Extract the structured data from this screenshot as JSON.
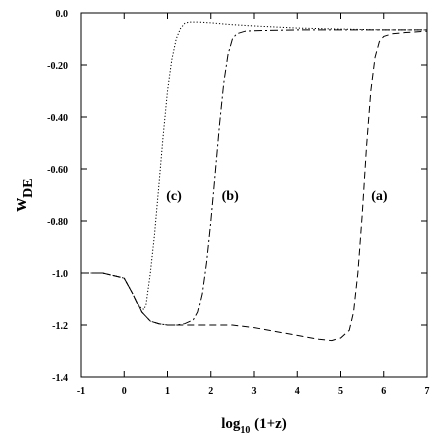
{
  "chart_data": {
    "type": "line",
    "xlabel_main": "log",
    "xlabel_sub": "10",
    "xlabel_rest": " (1+z)",
    "ylabel_main": "w",
    "ylabel_sub": "DE",
    "xlim": [
      -1,
      7
    ],
    "ylim": [
      -1.4,
      0.0
    ],
    "x_ticks": [
      -1,
      0,
      1,
      2,
      3,
      4,
      5,
      6,
      7
    ],
    "x_tick_labels": [
      "-1",
      "0",
      "1",
      "2",
      "3",
      "4",
      "5",
      "6",
      "7"
    ],
    "y_ticks": [
      0.0,
      -0.2,
      -0.4,
      -0.6,
      -0.8,
      -1.0,
      -1.2,
      -1.4
    ],
    "y_tick_labels": [
      "0.0",
      "-0.20",
      "-0.40",
      "-0.60",
      "-0.80",
      "-1.0",
      "-1.2",
      "-1.4"
    ],
    "grid": false,
    "series": [
      {
        "label": "(a)",
        "style": "dashed",
        "label_pos": {
          "x": 5.9,
          "y": -0.72
        },
        "x": [
          -1,
          -0.5,
          0,
          0.2,
          0.4,
          0.6,
          0.8,
          1.0,
          1.5,
          2.0,
          2.5,
          3.0,
          3.5,
          4.0,
          4.5,
          4.8,
          5.0,
          5.2,
          5.3,
          5.4,
          5.5,
          5.6,
          5.7,
          5.8,
          5.9,
          6.0,
          6.2,
          6.5,
          7.0
        ],
        "y": [
          -1.0,
          -1.0,
          -1.02,
          -1.08,
          -1.15,
          -1.185,
          -1.195,
          -1.2,
          -1.2,
          -1.2,
          -1.2,
          -1.21,
          -1.225,
          -1.24,
          -1.255,
          -1.26,
          -1.25,
          -1.22,
          -1.15,
          -1.0,
          -0.78,
          -0.52,
          -0.3,
          -0.17,
          -0.11,
          -0.09,
          -0.08,
          -0.075,
          -0.07
        ]
      },
      {
        "label": "(b)",
        "style": "dash-dot",
        "label_pos": {
          "x": 2.45,
          "y": -0.72
        },
        "x": [
          -1,
          -0.5,
          0,
          0.2,
          0.4,
          0.6,
          0.8,
          1.0,
          1.2,
          1.4,
          1.6,
          1.7,
          1.8,
          1.9,
          2.0,
          2.1,
          2.2,
          2.3,
          2.4,
          2.5,
          2.6,
          2.8,
          3.0,
          4.0,
          5.0,
          6.0,
          7.0
        ],
        "y": [
          -1.0,
          -1.0,
          -1.02,
          -1.08,
          -1.15,
          -1.185,
          -1.195,
          -1.2,
          -1.2,
          -1.195,
          -1.18,
          -1.15,
          -1.08,
          -0.96,
          -0.8,
          -0.62,
          -0.43,
          -0.27,
          -0.16,
          -0.1,
          -0.08,
          -0.07,
          -0.068,
          -0.065,
          -0.065,
          -0.065,
          -0.065
        ]
      },
      {
        "label": "(c)",
        "style": "dotted",
        "label_pos": {
          "x": 1.15,
          "y": -0.72
        },
        "x": [
          -1,
          -0.5,
          0,
          0.2,
          0.35,
          0.45,
          0.5,
          0.6,
          0.7,
          0.8,
          0.9,
          1.0,
          1.1,
          1.2,
          1.3,
          1.4,
          1.5,
          1.7,
          2.0,
          2.5,
          3.0,
          4.0,
          5.0,
          6.0,
          7.0
        ],
        "y": [
          -1.0,
          -1.0,
          -1.02,
          -1.08,
          -1.13,
          -1.14,
          -1.12,
          -1.0,
          -0.85,
          -0.66,
          -0.47,
          -0.3,
          -0.18,
          -0.1,
          -0.06,
          -0.04,
          -0.035,
          -0.035,
          -0.038,
          -0.045,
          -0.05,
          -0.058,
          -0.062,
          -0.065,
          -0.065
        ]
      }
    ]
  }
}
